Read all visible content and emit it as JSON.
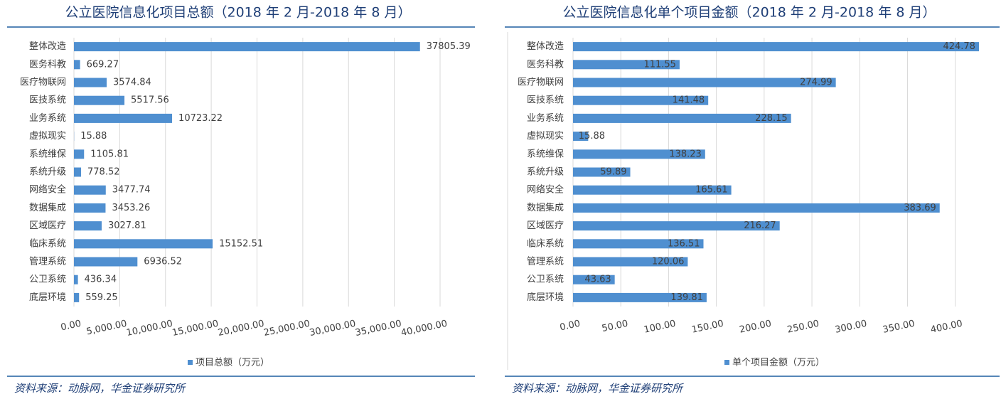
{
  "chart_data": [
    {
      "type": "bar",
      "title": "公立医院信息化项目总额（2018 年 2 月-2018 年 8 月）",
      "categories": [
        "整体改造",
        "医务科教",
        "医疗物联网",
        "医技系统",
        "业务系统",
        "虚拟现实",
        "系统维保",
        "系统升级",
        "网络安全",
        "数据集成",
        "区域医疗",
        "临床系统",
        "管理系统",
        "公卫系统",
        "底层环境"
      ],
      "series": [
        {
          "name": "项目总额（万元）",
          "color": "#4f8fd0",
          "values": [
            37805.39,
            669.27,
            3574.84,
            5517.56,
            10723.22,
            15.88,
            1105.81,
            778.52,
            3477.74,
            3453.26,
            3027.81,
            15152.51,
            6936.52,
            436.34,
            559.25
          ]
        }
      ],
      "xlim": [
        0,
        40000
      ],
      "xticks": [
        {
          "value": 0,
          "label": "0.00"
        },
        {
          "value": 5000,
          "label": "5,000.00"
        },
        {
          "value": 10000,
          "label": "10,000.00"
        },
        {
          "value": 15000,
          "label": "15,000.00"
        },
        {
          "value": 20000,
          "label": "20,000.00"
        },
        {
          "value": 25000,
          "label": "25,000.00"
        },
        {
          "value": 30000,
          "label": "30,000.00"
        },
        {
          "value": 35000,
          "label": "35,000.00"
        },
        {
          "value": 40000,
          "label": "40,000.00"
        }
      ],
      "grid": true,
      "label_position": "outside",
      "source": "资料来源：动脉网，华金证券研究所"
    },
    {
      "type": "bar",
      "title": "公立医院信息化单个项目金额（2018 年 2 月-2018 年 8 月）",
      "categories": [
        "整体改造",
        "医务科教",
        "医疗物联网",
        "医技系统",
        "业务系统",
        "虚拟现实",
        "系统维保",
        "系统升级",
        "网络安全",
        "数据集成",
        "区域医疗",
        "临床系统",
        "管理系统",
        "公卫系统",
        "底层环境"
      ],
      "series": [
        {
          "name": "单个项目金额（万元）",
          "color": "#4f8fd0",
          "values": [
            424.78,
            111.55,
            274.99,
            141.48,
            228.15,
            15.88,
            138.23,
            59.89,
            165.61,
            383.69,
            216.27,
            136.51,
            120.06,
            43.63,
            139.81
          ]
        }
      ],
      "xlim": [
        0,
        430
      ],
      "xticks": [
        {
          "value": 0,
          "label": "0.00"
        },
        {
          "value": 50,
          "label": "50.00"
        },
        {
          "value": 100,
          "label": "100.00"
        },
        {
          "value": 150,
          "label": "150.00"
        },
        {
          "value": 200,
          "label": "200.00"
        },
        {
          "value": 250,
          "label": "250.00"
        },
        {
          "value": 300,
          "label": "300.00"
        },
        {
          "value": 350,
          "label": "350.00"
        },
        {
          "value": 400,
          "label": "400.00"
        }
      ],
      "grid": true,
      "label_position": "inside",
      "source": "资料来源：动脉网，华金证券研究所"
    }
  ]
}
